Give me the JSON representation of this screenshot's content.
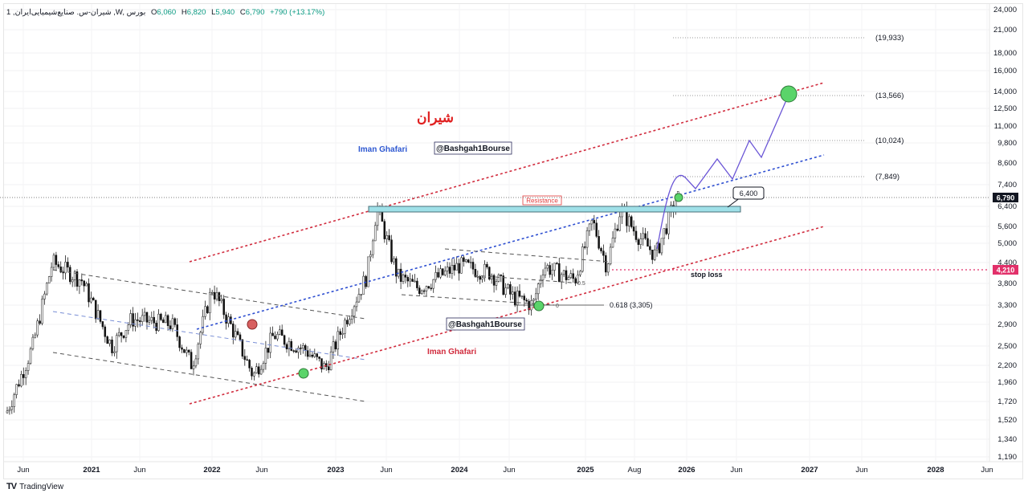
{
  "legend": {
    "symbol": "1 ,شیران-س. صنایع‌شیمیایی‌ایران ,W, بورس",
    "open_label": "O",
    "open": "6,060",
    "high_label": "H",
    "high": "6,820",
    "low_label": "L",
    "low": "5,940",
    "close_label": "C",
    "close": "6,790",
    "change": "+790 (+13.17%)"
  },
  "annotations": {
    "title_fa": "شیران",
    "author_top": "Iman Ghafari",
    "handle_top": "@Bashgah1Bourse",
    "handle_bottom": "@Bashgah1Bourse",
    "author_bottom": "Iman Ghafari",
    "resistance": "Resistance",
    "callout_6400": "6,400",
    "stop_loss": "stop loss",
    "fib_0": "0",
    "fib_05": "0.5",
    "fib_0618": "0.618 (3,305)",
    "target_1": "(19,933)",
    "target_2": "(13,566)",
    "target_3": "(10,024)",
    "target_4": "(7,849)"
  },
  "price_tags": {
    "last": "6,790",
    "stop": "4,210"
  },
  "footer": {
    "logo": "TV",
    "brand": "TradingView"
  },
  "chart_data": {
    "type": "candlestick",
    "title": "شیران weekly (log scale)",
    "scale": "log",
    "y_ticks": [
      "24,000",
      "21,000",
      "18,000",
      "16,000",
      "14,000",
      "12,500",
      "11,000",
      "9,800",
      "8,600",
      "7,400",
      "6,400",
      "5,600",
      "5,000",
      "4,400",
      "3,800",
      "3,300",
      "2,900",
      "2,500",
      "2,200",
      "1,960",
      "1,720",
      "1,520",
      "1,340",
      "1,190"
    ],
    "x_ticks": [
      "Jun",
      "2021",
      "Jun",
      "2022",
      "Jun",
      "2023",
      "Jun",
      "2024",
      "Jun",
      "2025",
      "Aug",
      "2026",
      "Jun",
      "2027",
      "Jun",
      "2028",
      "Jun"
    ],
    "last_price": 6790,
    "ohlc_last_bar": {
      "open": 6060,
      "high": 6820,
      "low": 5940,
      "close": 6790,
      "change": 790,
      "change_pct": 13.17
    },
    "levels": {
      "resistance": 6400,
      "stop_loss": 4210,
      "fib_0618": 3305,
      "targets": [
        7849,
        10024,
        13566,
        19933
      ]
    },
    "price_path_approx": [
      {
        "x": "2020-05",
        "p": 1600
      },
      {
        "x": "2020-07",
        "p": 2500
      },
      {
        "x": "2020-09",
        "p": 4400
      },
      {
        "x": "2020-12",
        "p": 3900
      },
      {
        "x": "2021-03",
        "p": 2500
      },
      {
        "x": "2021-05",
        "p": 3000
      },
      {
        "x": "2021-09",
        "p": 2900
      },
      {
        "x": "2021-11",
        "p": 2200
      },
      {
        "x": "2022-01",
        "p": 3700
      },
      {
        "x": "2022-03",
        "p": 2800
      },
      {
        "x": "2022-05",
        "p": 2050
      },
      {
        "x": "2022-07",
        "p": 2700
      },
      {
        "x": "2022-10",
        "p": 2450
      },
      {
        "x": "2022-12",
        "p": 2150
      },
      {
        "x": "2023-02",
        "p": 3000
      },
      {
        "x": "2023-04",
        "p": 4000
      },
      {
        "x": "2023-05",
        "p": 6400
      },
      {
        "x": "2023-07",
        "p": 4000
      },
      {
        "x": "2023-09",
        "p": 3700
      },
      {
        "x": "2024-01",
        "p": 4300
      },
      {
        "x": "2024-04",
        "p": 4100
      },
      {
        "x": "2024-06",
        "p": 3500
      },
      {
        "x": "2024-08",
        "p": 3300
      },
      {
        "x": "2024-09",
        "p": 4300
      },
      {
        "x": "2024-12",
        "p": 3900
      },
      {
        "x": "2025-02",
        "p": 5800
      },
      {
        "x": "2025-04",
        "p": 4300
      },
      {
        "x": "2025-06",
        "p": 6300
      },
      {
        "x": "2025-08",
        "p": 5400
      },
      {
        "x": "2025-10",
        "p": 4600
      },
      {
        "x": "2025-12",
        "p": 6790
      }
    ],
    "projection_path": [
      7800,
      7250,
      8500,
      7700,
      9900,
      8600,
      13566
    ]
  }
}
